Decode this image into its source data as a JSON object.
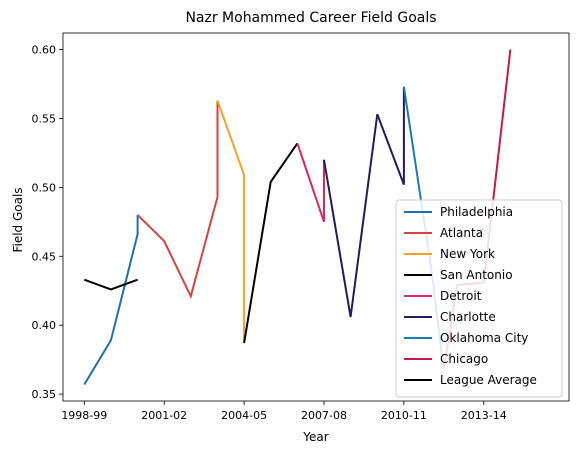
{
  "chart_data": {
    "type": "line",
    "title": "Nazr Mohammed Career Field Goals",
    "xlabel": "Year",
    "ylabel": "Field Goals",
    "xlim": [
      -0.8,
      18.2
    ],
    "ylim": [
      0.345,
      0.612
    ],
    "x_ticks": [
      {
        "x": 0,
        "label": "1998-99"
      },
      {
        "x": 3,
        "label": "2001-02"
      },
      {
        "x": 6,
        "label": "2004-05"
      },
      {
        "x": 9,
        "label": "2007-08"
      },
      {
        "x": 12,
        "label": "2010-11"
      },
      {
        "x": 15,
        "label": "2013-14"
      }
    ],
    "y_ticks": [
      {
        "y": 0.35,
        "label": "0.35"
      },
      {
        "y": 0.4,
        "label": "0.40"
      },
      {
        "y": 0.45,
        "label": "0.45"
      },
      {
        "y": 0.5,
        "label": "0.50"
      },
      {
        "y": 0.55,
        "label": "0.55"
      },
      {
        "y": 0.6,
        "label": "0.60"
      }
    ],
    "grid": false,
    "legend_position": "lower-right",
    "series": [
      {
        "name": "Philadelphia",
        "color": "#1f6fb4",
        "points": [
          [
            0,
            0.357
          ],
          [
            1,
            0.389
          ],
          [
            2,
            0.466
          ],
          [
            2,
            0.48
          ]
        ]
      },
      {
        "name": "Atlanta",
        "color": "#d94040",
        "points": [
          [
            2,
            0.48
          ],
          [
            3,
            0.461
          ],
          [
            4,
            0.421
          ],
          [
            5,
            0.493
          ],
          [
            5,
            0.563
          ]
        ]
      },
      {
        "name": "New York",
        "color": "#f4a222",
        "points": [
          [
            5,
            0.563
          ],
          [
            6,
            0.509
          ],
          [
            6,
            0.387
          ]
        ]
      },
      {
        "name": "San Antonio",
        "color": "#000000",
        "points": [
          [
            6,
            0.387
          ],
          [
            7,
            0.504
          ],
          [
            8,
            0.532
          ]
        ]
      },
      {
        "name": "Detroit",
        "color": "#e0245e",
        "points": [
          [
            8,
            0.532
          ],
          [
            9,
            0.475
          ],
          [
            9,
            0.52
          ]
        ]
      },
      {
        "name": "Charlotte",
        "color": "#241a5c",
        "points": [
          [
            9,
            0.52
          ],
          [
            10,
            0.406
          ],
          [
            11,
            0.553
          ],
          [
            12,
            0.502
          ],
          [
            12,
            0.573
          ]
        ]
      },
      {
        "name": "Oklahoma City",
        "color": "#1a7ab8",
        "points": [
          [
            12,
            0.573
          ],
          [
            13,
            0.445
          ],
          [
            13.5,
            0.368
          ]
        ]
      },
      {
        "name": "Chicago",
        "color": "#c8184a",
        "points": [
          [
            13.5,
            0.368
          ],
          [
            14,
            0.429
          ],
          [
            15,
            0.431
          ],
          [
            16,
            0.6
          ]
        ]
      },
      {
        "name": "League Average",
        "color": "#000000",
        "points": [
          [
            0,
            0.433
          ],
          [
            1,
            0.426
          ],
          [
            2,
            0.433
          ]
        ]
      }
    ]
  }
}
